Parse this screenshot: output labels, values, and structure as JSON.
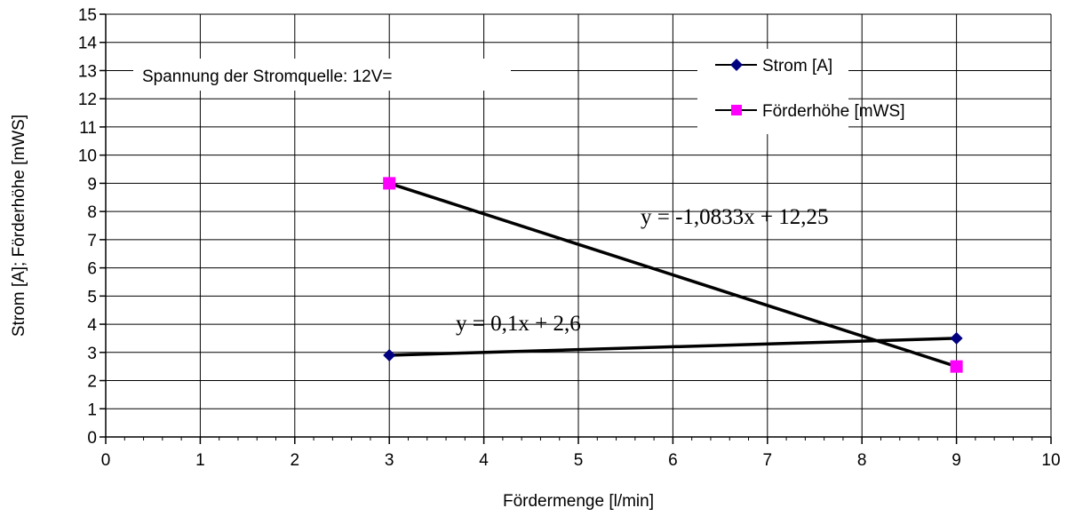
{
  "chart_data": {
    "type": "line",
    "xlabel": "Fördermenge [l/min]",
    "ylabel": "Strom [A]; Förderhöhe [mWS]",
    "xlim": [
      0,
      10
    ],
    "ylim": [
      0,
      15
    ],
    "x_ticks": [
      0,
      1,
      2,
      3,
      4,
      5,
      6,
      7,
      8,
      9,
      10
    ],
    "y_ticks": [
      0,
      1,
      2,
      3,
      4,
      5,
      6,
      7,
      8,
      9,
      10,
      11,
      12,
      13,
      14,
      15
    ],
    "grid": true,
    "legend_position": "top-right",
    "series": [
      {
        "name": "Strom [A]",
        "marker": "diamond",
        "marker_color": "#000080",
        "points": [
          {
            "x": 3,
            "y": 2.9
          },
          {
            "x": 9,
            "y": 3.5
          }
        ],
        "trendline_label": "y = 0,1x + 2,6",
        "trendline": {
          "slope": 0.1,
          "intercept": 2.6
        }
      },
      {
        "name": "Förderhöhe [mWS]",
        "marker": "square",
        "marker_color": "#ff00ff",
        "points": [
          {
            "x": 3,
            "y": 9
          },
          {
            "x": 9,
            "y": 2.5
          }
        ],
        "trendline_label": "y = -1,0833x + 12,25",
        "trendline": {
          "slope": -1.0833,
          "intercept": 12.25
        }
      }
    ],
    "annotation": "Spannung der Stromquelle: 12V="
  }
}
